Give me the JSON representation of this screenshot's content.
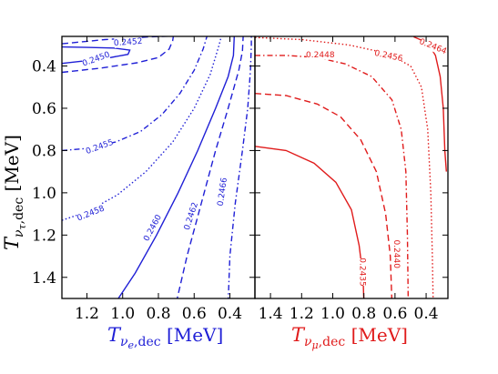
{
  "chart_data": [
    {
      "panel": "left",
      "type": "contour",
      "color": "#1f1fd6",
      "xlabel": {
        "main": "T",
        "sub": "ν",
        "subsub": "e",
        "subtail": ",dec",
        "unit": " [MeV]"
      },
      "ylabel": {
        "main": "T",
        "sub": "ν",
        "subsub": "τ",
        "subtail": ",dec",
        "unit": " [MeV]"
      },
      "xlim": [
        1.34,
        0.26
      ],
      "ylim": [
        1.5,
        0.26
      ],
      "x_ticks": [
        {
          "value": 1.2,
          "label": "1.2"
        },
        {
          "value": 1.0,
          "label": "1.0"
        },
        {
          "value": 0.8,
          "label": "0.8"
        },
        {
          "value": 0.6,
          "label": "0.6"
        },
        {
          "value": 0.4,
          "label": "0.4"
        }
      ],
      "y_ticks": [
        {
          "value": 0.4,
          "label": "0.4"
        },
        {
          "value": 0.6,
          "label": "0.6"
        },
        {
          "value": 0.8,
          "label": "0.8"
        },
        {
          "value": 1.0,
          "label": "1.0"
        },
        {
          "value": 1.2,
          "label": "1.2"
        },
        {
          "value": 1.4,
          "label": "1.4"
        }
      ],
      "contours": [
        {
          "level_label": "0.2452",
          "style": "dashed",
          "label_at": [
            0.97,
            0.285
          ],
          "label_angle": -4,
          "points": [
            [
              1.34,
              0.295
            ],
            [
              1.1,
              0.275
            ],
            [
              0.85,
              0.262
            ],
            [
              0.6,
              0.255
            ],
            [
              0.4,
              0.25
            ]
          ]
        },
        {
          "level_label": "0.2450",
          "style": "solid",
          "label_at": [
            1.15,
            0.365
          ],
          "label_angle": -20,
          "points": [
            [
              1.34,
              0.388
            ],
            [
              1.1,
              0.365
            ],
            [
              0.97,
              0.345
            ],
            [
              0.96,
              0.325
            ],
            [
              1.05,
              0.315
            ],
            [
              1.2,
              0.312
            ],
            [
              1.34,
              0.31
            ]
          ]
        },
        {
          "level_label": "",
          "style": "dashed",
          "points": [
            [
              1.34,
              0.43
            ],
            [
              1.12,
              0.41
            ],
            [
              0.92,
              0.385
            ],
            [
              0.8,
              0.36
            ],
            [
              0.74,
              0.32
            ],
            [
              0.72,
              0.28
            ],
            [
              0.715,
              0.25
            ]
          ]
        },
        {
          "level_label": "0.2455",
          "style": "dashdot",
          "label_at": [
            1.13,
            0.78
          ],
          "label_angle": -20,
          "points": [
            [
              1.34,
              0.8
            ],
            [
              1.2,
              0.79
            ],
            [
              1.04,
              0.76
            ],
            [
              0.9,
              0.71
            ],
            [
              0.78,
              0.63
            ],
            [
              0.68,
              0.53
            ],
            [
              0.6,
              0.42
            ],
            [
              0.55,
              0.32
            ],
            [
              0.525,
              0.25
            ]
          ]
        },
        {
          "level_label": "0.2458",
          "style": "dotted",
          "label_at": [
            1.18,
            1.095
          ],
          "label_angle": -22,
          "points": [
            [
              1.34,
              1.13
            ],
            [
              1.2,
              1.09
            ],
            [
              1.03,
              1.01
            ],
            [
              0.87,
              0.9
            ],
            [
              0.72,
              0.76
            ],
            [
              0.6,
              0.6
            ],
            [
              0.51,
              0.44
            ],
            [
              0.46,
              0.3
            ],
            [
              0.445,
              0.25
            ]
          ]
        },
        {
          "level_label": "0.2460",
          "style": "solid",
          "label_at": [
            0.835,
            1.165
          ],
          "label_angle": -62,
          "points": [
            [
              1.04,
              1.52
            ],
            [
              0.93,
              1.38
            ],
            [
              0.81,
              1.2
            ],
            [
              0.69,
              1.0
            ],
            [
              0.58,
              0.8
            ],
            [
              0.48,
              0.6
            ],
            [
              0.41,
              0.45
            ],
            [
              0.38,
              0.35
            ],
            [
              0.375,
              0.25
            ]
          ]
        },
        {
          "level_label": "0.2462",
          "style": "dashed",
          "label_at": [
            0.62,
            1.11
          ],
          "label_angle": -72,
          "points": [
            [
              0.7,
              1.52
            ],
            [
              0.64,
              1.3
            ],
            [
              0.56,
              1.05
            ],
            [
              0.48,
              0.8
            ],
            [
              0.41,
              0.6
            ],
            [
              0.35,
              0.42
            ],
            [
              0.33,
              0.33
            ],
            [
              0.325,
              0.25
            ]
          ]
        },
        {
          "level_label": "0.2466",
          "style": "dashdot",
          "label_at": [
            0.445,
            0.995
          ],
          "label_angle": -82,
          "points": [
            [
              0.41,
              1.52
            ],
            [
              0.4,
              1.3
            ],
            [
              0.37,
              1.05
            ],
            [
              0.33,
              0.8
            ],
            [
              0.3,
              0.6
            ],
            [
              0.285,
              0.42
            ],
            [
              0.28,
              0.3
            ],
            [
              0.28,
              0.25
            ]
          ]
        }
      ]
    },
    {
      "panel": "right",
      "type": "contour",
      "color": "#e01b1b",
      "xlabel": {
        "main": "T",
        "sub": "ν",
        "subsub": "μ",
        "subtail": ",dec",
        "unit": " [MeV]"
      },
      "xlim": [
        1.5,
        0.26
      ],
      "ylim": [
        1.5,
        0.26
      ],
      "x_ticks": [
        {
          "value": 1.4,
          "label": "1.4"
        },
        {
          "value": 1.2,
          "label": "1.2"
        },
        {
          "value": 1.0,
          "label": "1.0"
        },
        {
          "value": 0.8,
          "label": "0.8"
        },
        {
          "value": 0.6,
          "label": "0.6"
        },
        {
          "value": 0.4,
          "label": "0.4"
        }
      ],
      "contours": [
        {
          "level_label": "0.2464",
          "style": "solid",
          "label_at": [
            0.355,
            0.305
          ],
          "label_angle": 22,
          "points": [
            [
              0.48,
              0.262
            ],
            [
              0.39,
              0.29
            ],
            [
              0.34,
              0.35
            ],
            [
              0.31,
              0.45
            ],
            [
              0.29,
              0.6
            ],
            [
              0.28,
              0.8
            ],
            [
              0.27,
              0.9
            ]
          ]
        },
        {
          "level_label": "0.2456",
          "style": "dotted",
          "label_at": [
            0.64,
            0.35
          ],
          "label_angle": 12,
          "points": [
            [
              1.5,
              0.265
            ],
            [
              1.2,
              0.275
            ],
            [
              0.9,
              0.3
            ],
            [
              0.65,
              0.34
            ],
            [
              0.5,
              0.4
            ],
            [
              0.43,
              0.5
            ],
            [
              0.39,
              0.7
            ],
            [
              0.37,
              1.0
            ],
            [
              0.36,
              1.3
            ],
            [
              0.355,
              1.52
            ]
          ]
        },
        {
          "level_label": "0.2448",
          "style": "dashdot",
          "label_at": [
            1.08,
            0.345
          ],
          "label_angle": 0,
          "points": [
            [
              1.5,
              0.35
            ],
            [
              1.3,
              0.35
            ],
            [
              1.1,
              0.36
            ],
            [
              0.92,
              0.39
            ],
            [
              0.75,
              0.45
            ],
            [
              0.62,
              0.56
            ],
            [
              0.56,
              0.7
            ],
            [
              0.53,
              0.9
            ],
            [
              0.52,
              1.2
            ],
            [
              0.515,
              1.52
            ]
          ]
        },
        {
          "level_label": "0.2440",
          "style": "dashed",
          "label_at": [
            0.585,
            1.29
          ],
          "label_angle": 90,
          "points": [
            [
              1.5,
              0.53
            ],
            [
              1.3,
              0.54
            ],
            [
              1.1,
              0.58
            ],
            [
              0.95,
              0.64
            ],
            [
              0.82,
              0.75
            ],
            [
              0.72,
              0.9
            ],
            [
              0.66,
              1.1
            ],
            [
              0.63,
              1.3
            ],
            [
              0.62,
              1.52
            ]
          ]
        },
        {
          "level_label": "0.2435",
          "style": "solid",
          "label_at": [
            0.805,
            1.375
          ],
          "label_angle": 90,
          "points": [
            [
              1.5,
              0.78
            ],
            [
              1.3,
              0.8
            ],
            [
              1.12,
              0.86
            ],
            [
              0.98,
              0.95
            ],
            [
              0.88,
              1.08
            ],
            [
              0.83,
              1.25
            ],
            [
              0.805,
              1.4
            ],
            [
              0.8,
              1.52
            ]
          ]
        }
      ]
    }
  ]
}
